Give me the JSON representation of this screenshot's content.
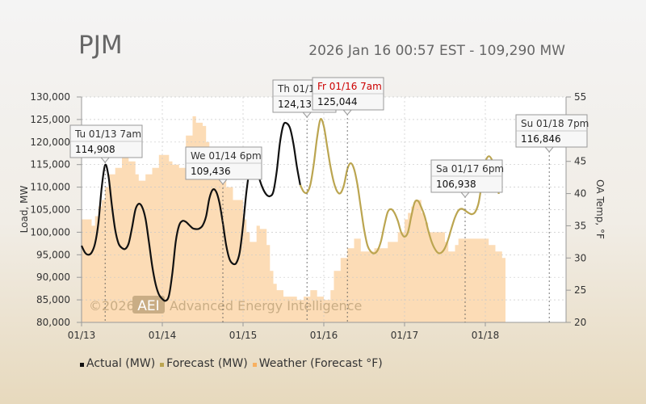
{
  "header": {
    "title": "PJM",
    "subtitle": "2026 Jan 16 00:57 EST - 109,290 MW"
  },
  "watermark": {
    "prefix": "©2026",
    "badge": "AEI",
    "text": "Advanced Energy Intelligence"
  },
  "colors": {
    "actual": "#111111",
    "forecast": "#bba550",
    "weather_fill": "#fcdcb6",
    "tooltip_bg": "#f7f7f7",
    "tooltip_highlight_text": "#cc0000"
  },
  "chart_data": {
    "type": "line",
    "x_axis": {
      "tick_labels": [
        "01/13",
        "01/14",
        "01/15",
        "01/16",
        "01/17",
        "01/18"
      ],
      "range_hours": [
        0,
        144
      ]
    },
    "y_axis_left": {
      "label": "Load, MW",
      "ylim": [
        80000,
        130000
      ],
      "tick_labels": [
        "80,000",
        "85,000",
        "90,000",
        "95,000",
        "100,000",
        "105,000",
        "110,000",
        "115,000",
        "120,000",
        "125,000",
        "130,000"
      ]
    },
    "y_axis_right": {
      "label": "OA Temp, °F",
      "ylim": [
        20,
        55
      ],
      "tick_labels": [
        "20",
        "25",
        "30",
        "35",
        "40",
        "45",
        "50",
        "55"
      ]
    },
    "grid": true,
    "series": [
      {
        "name": "Actual (MW)",
        "axis": "left",
        "points": [
          [
            0,
            97000
          ],
          [
            1,
            95500
          ],
          [
            2,
            95000
          ],
          [
            3,
            95500
          ],
          [
            4,
            97500
          ],
          [
            5,
            102000
          ],
          [
            6,
            110000
          ],
          [
            7,
            114908
          ],
          [
            8,
            112500
          ],
          [
            9,
            106000
          ],
          [
            10,
            100500
          ],
          [
            11,
            97500
          ],
          [
            12,
            96500
          ],
          [
            13,
            96300
          ],
          [
            14,
            97500
          ],
          [
            15,
            101000
          ],
          [
            16,
            105000
          ],
          [
            17,
            106300
          ],
          [
            18,
            105600
          ],
          [
            19,
            103000
          ],
          [
            20,
            98000
          ],
          [
            21,
            92500
          ],
          [
            22,
            88500
          ],
          [
            23,
            86200
          ],
          [
            24,
            85200
          ],
          [
            25,
            84800
          ],
          [
            26,
            86000
          ],
          [
            27,
            91000
          ],
          [
            28,
            98000
          ],
          [
            29,
            101500
          ],
          [
            30,
            102500
          ],
          [
            31,
            102300
          ],
          [
            32,
            101600
          ],
          [
            33,
            100900
          ],
          [
            34,
            100700
          ],
          [
            35,
            100800
          ],
          [
            36,
            101500
          ],
          [
            37,
            103500
          ],
          [
            38,
            107500
          ],
          [
            39,
            109436
          ],
          [
            40,
            109000
          ],
          [
            41,
            106500
          ],
          [
            42,
            102000
          ],
          [
            43,
            97000
          ],
          [
            44,
            94000
          ],
          [
            45,
            93000
          ],
          [
            46,
            93200
          ],
          [
            47,
            95500
          ],
          [
            48,
            101500
          ],
          [
            49,
            109000
          ],
          [
            50,
            114000
          ],
          [
            51,
            116000
          ],
          [
            52,
            114500
          ],
          [
            53,
            111500
          ],
          [
            54,
            109500
          ],
          [
            55,
            108300
          ],
          [
            56,
            108000
          ],
          [
            57,
            109000
          ],
          [
            58,
            113500
          ],
          [
            59,
            120000
          ],
          [
            60,
            123800
          ],
          [
            61,
            124138
          ],
          [
            62,
            123000
          ],
          [
            63,
            119500
          ],
          [
            64,
            114500
          ],
          [
            65,
            110500
          ]
        ]
      },
      {
        "name": "Forecast (MW)",
        "axis": "left",
        "points": [
          [
            65,
            110500
          ],
          [
            66,
            109000
          ],
          [
            67,
            108800
          ],
          [
            68,
            110500
          ],
          [
            69,
            115000
          ],
          [
            70,
            121000
          ],
          [
            71,
            125044
          ],
          [
            72,
            123500
          ],
          [
            73,
            119000
          ],
          [
            74,
            114500
          ],
          [
            75,
            111000
          ],
          [
            76,
            109000
          ],
          [
            77,
            108700
          ],
          [
            78,
            110500
          ],
          [
            79,
            114000
          ],
          [
            80,
            115300
          ],
          [
            81,
            114000
          ],
          [
            82,
            110500
          ],
          [
            83,
            105500
          ],
          [
            84,
            100500
          ],
          [
            85,
            97000
          ],
          [
            86,
            95700
          ],
          [
            87,
            95300
          ],
          [
            88,
            96000
          ],
          [
            89,
            98000
          ],
          [
            90,
            101500
          ],
          [
            91,
            104500
          ],
          [
            92,
            105100
          ],
          [
            93,
            104300
          ],
          [
            94,
            102500
          ],
          [
            95,
            100000
          ],
          [
            96,
            99000
          ],
          [
            97,
            100000
          ],
          [
            98,
            103500
          ],
          [
            99,
            106600
          ],
          [
            100,
            106938
          ],
          [
            101,
            105500
          ],
          [
            102,
            103500
          ],
          [
            103,
            100500
          ],
          [
            104,
            98000
          ],
          [
            105,
            96300
          ],
          [
            106,
            95400
          ],
          [
            107,
            95500
          ],
          [
            108,
            96500
          ],
          [
            109,
            98500
          ],
          [
            110,
            101000
          ],
          [
            111,
            103300
          ],
          [
            112,
            104800
          ],
          [
            113,
            105200
          ],
          [
            114,
            104800
          ],
          [
            115,
            104300
          ],
          [
            116,
            104000
          ],
          [
            117,
            104500
          ],
          [
            118,
            106500
          ],
          [
            119,
            111000
          ],
          [
            120,
            115500
          ],
          [
            121,
            116846
          ],
          [
            122,
            116000
          ],
          [
            123,
            113500
          ],
          [
            124,
            108500
          ]
        ]
      },
      {
        "name": "Weather (Forecast °F)",
        "axis": "right",
        "points": [
          [
            0,
            36
          ],
          [
            3,
            36
          ],
          [
            3,
            35
          ],
          [
            4,
            35
          ],
          [
            4,
            36.5
          ],
          [
            5,
            36.5
          ],
          [
            5,
            38
          ],
          [
            6,
            38
          ],
          [
            6,
            39
          ],
          [
            7,
            39
          ],
          [
            7,
            41
          ],
          [
            8,
            41
          ],
          [
            8,
            43
          ],
          [
            10,
            43
          ],
          [
            10,
            44
          ],
          [
            12,
            44
          ],
          [
            12,
            47
          ],
          [
            14,
            47
          ],
          [
            14,
            45
          ],
          [
            16,
            45
          ],
          [
            16,
            43
          ],
          [
            17,
            43
          ],
          [
            17,
            42
          ],
          [
            19,
            42
          ],
          [
            19,
            43
          ],
          [
            21,
            43
          ],
          [
            21,
            44
          ],
          [
            23,
            44
          ],
          [
            23,
            46
          ],
          [
            26,
            46
          ],
          [
            26,
            45
          ],
          [
            27,
            45
          ],
          [
            27,
            44.5
          ],
          [
            29,
            44.5
          ],
          [
            29,
            44
          ],
          [
            31,
            44
          ],
          [
            31,
            49
          ],
          [
            33,
            49
          ],
          [
            33,
            52
          ],
          [
            34,
            52
          ],
          [
            34,
            51
          ],
          [
            36,
            51
          ],
          [
            36,
            50.5
          ],
          [
            37,
            50.5
          ],
          [
            37,
            48
          ],
          [
            38,
            48
          ],
          [
            38,
            45
          ],
          [
            40,
            45
          ],
          [
            40,
            43
          ],
          [
            42,
            43
          ],
          [
            42,
            42
          ],
          [
            43,
            42
          ],
          [
            43,
            41
          ],
          [
            45,
            41
          ],
          [
            45,
            39
          ],
          [
            48,
            39
          ],
          [
            48,
            36
          ],
          [
            49,
            36
          ],
          [
            49,
            34
          ],
          [
            50,
            34
          ],
          [
            50,
            32.5
          ],
          [
            52,
            32.5
          ],
          [
            52,
            35
          ],
          [
            53,
            35
          ],
          [
            53,
            34.5
          ],
          [
            55,
            34.5
          ],
          [
            55,
            32
          ],
          [
            56,
            32
          ],
          [
            56,
            28
          ],
          [
            57,
            28
          ],
          [
            57,
            26
          ],
          [
            58,
            26
          ],
          [
            58,
            25
          ],
          [
            60,
            25
          ],
          [
            60,
            24
          ],
          [
            64,
            24
          ],
          [
            64,
            23.5
          ],
          [
            66,
            23.5
          ],
          [
            66,
            24
          ],
          [
            68,
            24
          ],
          [
            68,
            25
          ],
          [
            70,
            25
          ],
          [
            70,
            24
          ],
          [
            72,
            24
          ],
          [
            72,
            23.5
          ],
          [
            74,
            23.5
          ],
          [
            74,
            25
          ],
          [
            75,
            25
          ],
          [
            75,
            28
          ],
          [
            77,
            28
          ],
          [
            77,
            30
          ],
          [
            79,
            30
          ],
          [
            79,
            31.5
          ],
          [
            81,
            31.5
          ],
          [
            81,
            33
          ],
          [
            83,
            33
          ],
          [
            83,
            31
          ],
          [
            87,
            31
          ],
          [
            87,
            31.5
          ],
          [
            91,
            31.5
          ],
          [
            91,
            32.5
          ],
          [
            94,
            32.5
          ],
          [
            94,
            34
          ],
          [
            96,
            34
          ],
          [
            96,
            36
          ],
          [
            97,
            36
          ],
          [
            97,
            37
          ],
          [
            98,
            37
          ],
          [
            98,
            38
          ],
          [
            99,
            38
          ],
          [
            99,
            39
          ],
          [
            101,
            39
          ],
          [
            101,
            37
          ],
          [
            102,
            37
          ],
          [
            102,
            35.5
          ],
          [
            103,
            35.5
          ],
          [
            103,
            34
          ],
          [
            108,
            34
          ],
          [
            108,
            32.5
          ],
          [
            109,
            32.5
          ],
          [
            109,
            31
          ],
          [
            111,
            31
          ],
          [
            111,
            32
          ],
          [
            112,
            32
          ],
          [
            112,
            33
          ],
          [
            121,
            33
          ],
          [
            121,
            32
          ],
          [
            123,
            32
          ],
          [
            123,
            31
          ],
          [
            125,
            31
          ],
          [
            125,
            30
          ],
          [
            126,
            30
          ]
        ]
      }
    ],
    "annotations": [
      {
        "label": "Tu 01/13 7am",
        "value": "114,908"
      },
      {
        "label": "We 01/14 6pm",
        "value": "109,436"
      },
      {
        "label": "Th 01/15 7pm",
        "value": "124,138"
      },
      {
        "label": "Fr 01/16 7am",
        "value": "125,044",
        "highlight": true
      },
      {
        "label": "Sa 01/17 6pm",
        "value": "106,938"
      },
      {
        "label": "Su 01/18 7pm",
        "value": "116,846"
      }
    ],
    "legend_position": "bottom-left"
  }
}
